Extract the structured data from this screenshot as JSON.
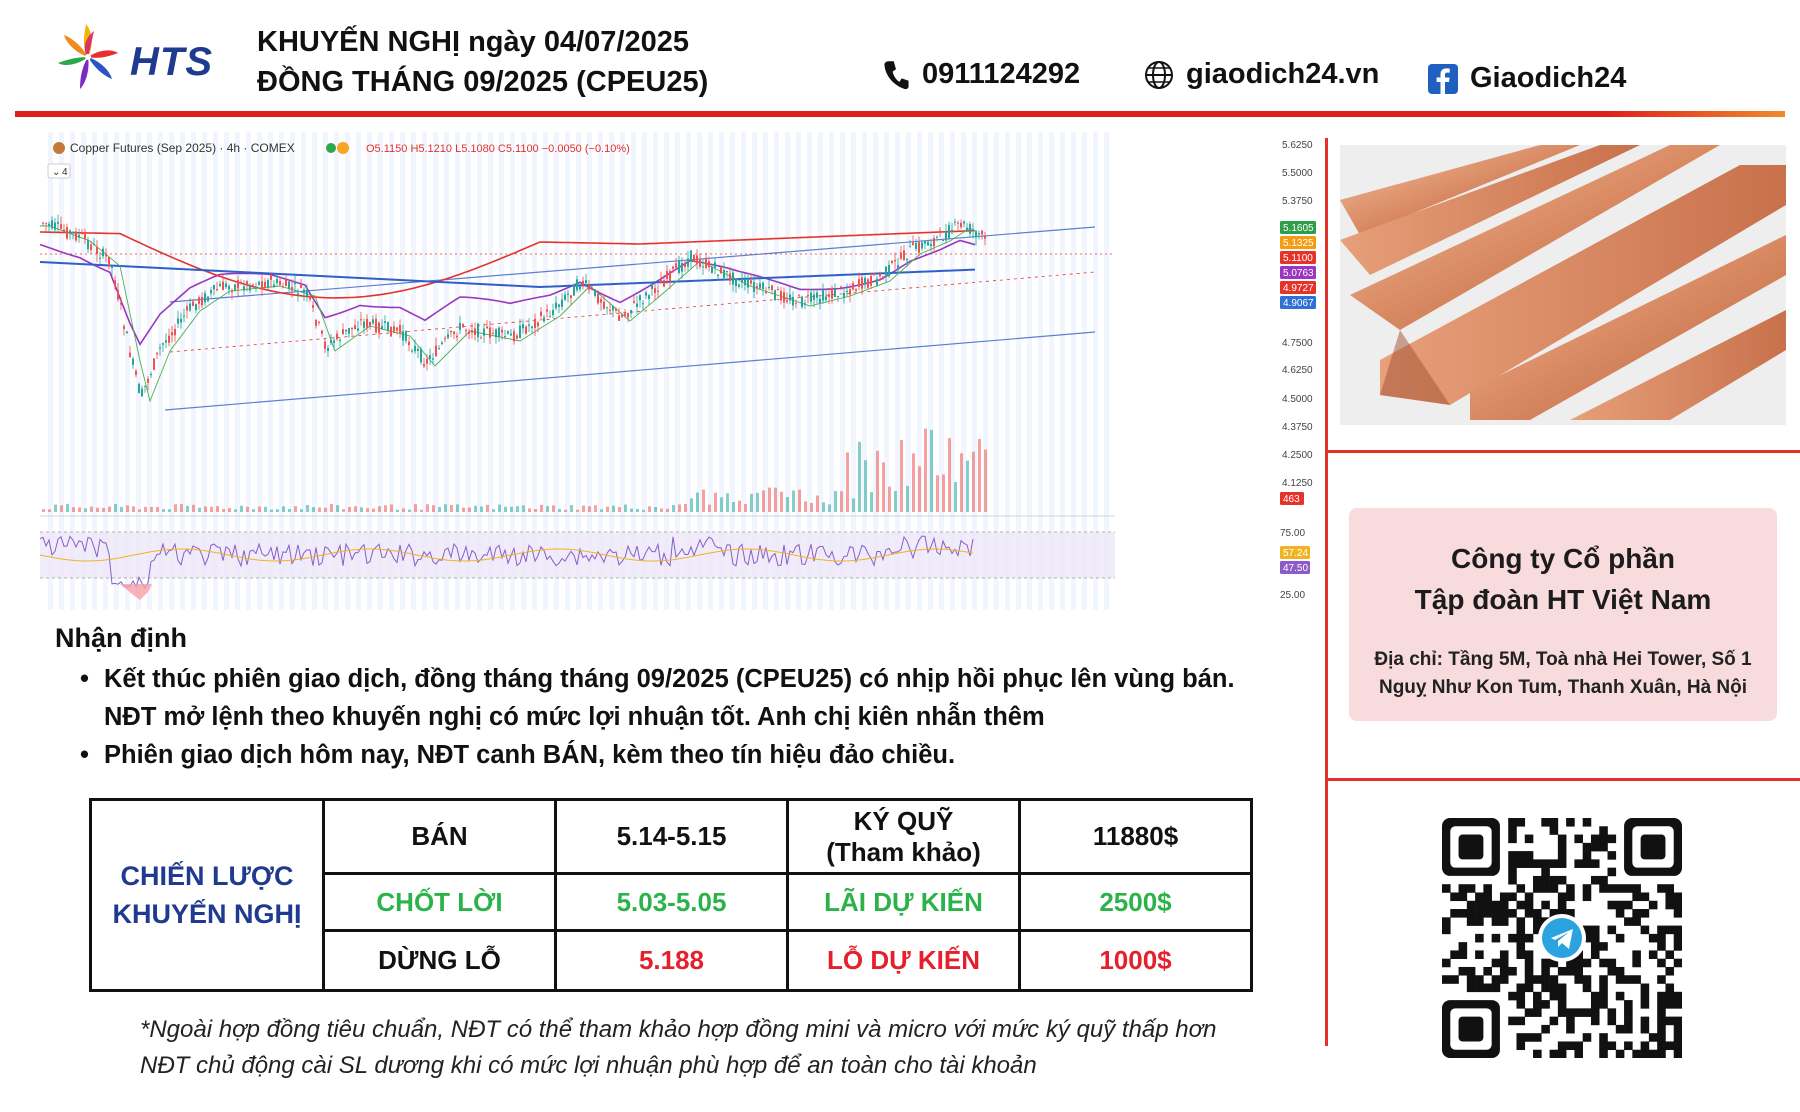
{
  "header": {
    "brand": "HTS",
    "title_line1": "KHUYẾN NGHỊ ngày 04/07/2025",
    "title_line2": "ĐỒNG THÁNG 09/2025 (CPEU25)",
    "phone": "0911124292",
    "website": "giaodich24.vn",
    "facebook": "Giaodich24"
  },
  "chart": {
    "instrument": "Copper Futures (Sep 2025) · 4h · COMEX",
    "ohlc": "O5.1150 H5.1210 L5.1080 C5.1100 −0.0050 (−0.10%)",
    "indicator_count": "4",
    "price_ticks": [
      "5.6250",
      "5.5000",
      "5.3750",
      "4.7500",
      "4.6250",
      "4.5000",
      "4.3750",
      "4.2500",
      "4.1250"
    ],
    "price_badges": [
      {
        "value": "5.1605",
        "color": "#2e9e48"
      },
      {
        "value": "5.1325",
        "color": "#f59b14"
      },
      {
        "value": "5.1100",
        "color": "#e5332a"
      },
      {
        "value": "5.0763",
        "color": "#9b36c0"
      },
      {
        "value": "4.9727",
        "color": "#e5332a"
      },
      {
        "value": "4.9067",
        "color": "#2f6fd6"
      }
    ],
    "volume_badge": "463",
    "rsi_ticks": [
      "75.00",
      "25.00"
    ],
    "rsi_badges": [
      {
        "value": "57.24",
        "color": "#f0b324"
      },
      {
        "value": "47.50",
        "color": "#8b5cc7"
      }
    ]
  },
  "company": {
    "name_line1": "Công ty Cổ phần",
    "name_line2": "Tập đoàn HT Việt Nam",
    "address_line1": "Địa chỉ: Tầng 5M, Toà nhà Hei Tower, Số 1",
    "address_line2": "Nguỵ Như Kon Tum, Thanh Xuân, Hà Nội"
  },
  "analysis": {
    "title": "Nhận định",
    "bullet1_line1": "Kết thúc phiên giao dịch, đồng tháng tháng 09/2025 (CPEU25) có nhịp hồi phục lên vùng bán.",
    "bullet1_line2": "NĐT mở lệnh theo khuyến nghị có mức lợi nhuận tốt. Anh chị kiên nhẫn thêm",
    "bullet2": "Phiên giao dịch hôm nay, NĐT canh BÁN, kèm theo tín hiệu đảo chiều."
  },
  "strategy": {
    "label_line1": "CHIẾN LƯỢC",
    "label_line2": "KHUYẾN NGHỊ",
    "rows": [
      {
        "action": "BÁN",
        "price": "5.14-5.15",
        "metric_line1": "KÝ QUỸ",
        "metric_line2": "(Tham khảo)",
        "amount": "11880$"
      },
      {
        "action": "CHỐT LỜI",
        "price": "5.03-5.05",
        "metric_line1": "LÃI DỰ KIẾN",
        "metric_line2": "",
        "amount": "2500$"
      },
      {
        "action": "DỪNG LỖ",
        "price": "5.188",
        "metric_line1": "LỖ DỰ KIẾN",
        "metric_line2": "",
        "amount": "1000$"
      }
    ]
  },
  "footnote": {
    "line1": "*Ngoài hợp đồng tiêu chuẩn, NĐT có thể tham khảo hợp đồng mini và micro với mức ký quỹ thấp hơn",
    "line2": "NĐT chủ động cài SL dương khi có mức lợi nhuận phù hợp để an toàn cho tài khoản"
  }
}
